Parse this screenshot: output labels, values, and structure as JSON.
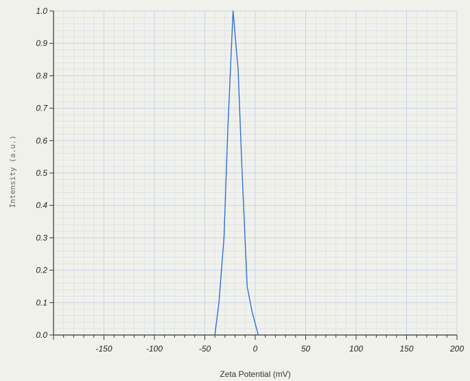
{
  "chart_data": {
    "type": "line",
    "title": "",
    "xlabel": "Zeta Potential (mV)",
    "ylabel": "Intensity (a.u.)",
    "xlim": [
      -200,
      200
    ],
    "ylim": [
      0.0,
      1.0
    ],
    "x_ticks": [
      -150,
      -100,
      -50,
      0,
      50,
      100,
      150,
      200
    ],
    "x_tick_labels": [
      "-150",
      "-100",
      "-50",
      "0",
      "50",
      "100",
      "150",
      "200"
    ],
    "y_ticks": [
      0.0,
      0.1,
      0.2,
      0.3,
      0.4,
      0.5,
      0.6,
      0.7,
      0.8,
      0.9,
      1.0
    ],
    "y_tick_labels": [
      "0.0",
      "0.1",
      "0.2",
      "0.3",
      "0.4",
      "0.5",
      "0.6",
      "0.7",
      "0.8",
      "0.9",
      "1.0"
    ],
    "grid": true,
    "legend": "none",
    "series": [
      {
        "color": "#2f6fd6",
        "x": [
          -40,
          -36,
          -31,
          -27,
          -22,
          -17,
          -13,
          -8,
          -3,
          3
        ],
        "y": [
          0.0,
          0.1,
          0.3,
          0.65,
          1.0,
          0.82,
          0.5,
          0.15,
          0.07,
          0.0
        ]
      }
    ],
    "colors": {
      "grid": "#c9d3e6",
      "axis": "#333333",
      "line": "#2f6fd6",
      "background": "#f1f1ec"
    }
  }
}
